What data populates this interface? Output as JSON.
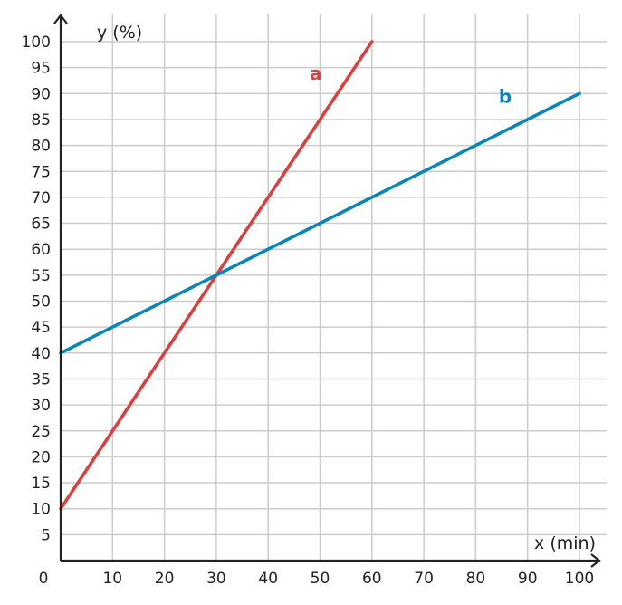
{
  "chart_data": {
    "type": "line",
    "title": "",
    "xlabel": "x (min)",
    "ylabel": "y (%)",
    "xlim": [
      0,
      100
    ],
    "ylim": [
      0,
      100
    ],
    "x_ticks": [
      10,
      20,
      30,
      40,
      50,
      60,
      70,
      80,
      90,
      100
    ],
    "y_ticks": [
      5,
      10,
      15,
      20,
      25,
      30,
      35,
      40,
      45,
      50,
      55,
      60,
      65,
      70,
      75,
      80,
      85,
      90,
      95,
      100
    ],
    "origin_label": "0",
    "grid": true,
    "series": [
      {
        "name": "a",
        "color": "#d94040",
        "x": [
          0,
          60
        ],
        "y": [
          10,
          100
        ]
      },
      {
        "name": "b",
        "color": "#0a85b8",
        "x": [
          0,
          100
        ],
        "y": [
          40,
          90
        ]
      }
    ]
  }
}
